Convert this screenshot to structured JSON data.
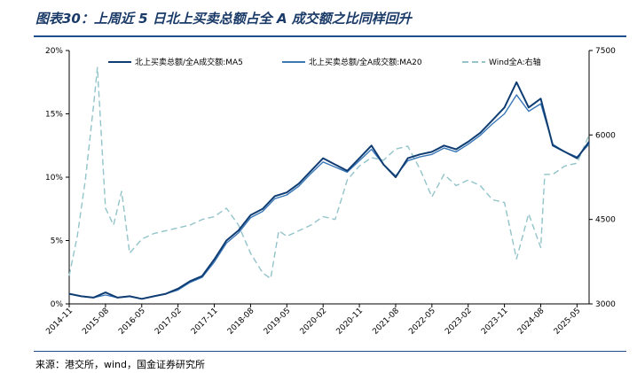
{
  "title": "图表30：上周近 5 日北上买卖总额占全 A 成交额之比同样回升",
  "source": "来源：港交所，wind，国金证券研究所",
  "chart_data": {
    "type": "line",
    "x_ticks": [
      "2014-11",
      "2015-08",
      "2016-05",
      "2017-02",
      "2017-11",
      "2018-08",
      "2019-05",
      "2020-02",
      "2020-11",
      "2021-08",
      "2022-05",
      "2023-02",
      "2023-11",
      "2024-08",
      "2025-05"
    ],
    "x_range": [
      "2014-11",
      "2025-08"
    ],
    "y_left": {
      "ticks": [
        "0%",
        "5%",
        "10%",
        "15%",
        "20%"
      ],
      "range": [
        0,
        20
      ]
    },
    "y_right": {
      "ticks": [
        "3000",
        "4500",
        "6000",
        "7500"
      ],
      "range": [
        3000,
        7500
      ]
    },
    "legend_position": "top",
    "colors": {
      "ma5": "#0f3d73",
      "ma20": "#3a78b8",
      "wind_a": "#92c4ca"
    },
    "series": [
      {
        "name": "北上买卖总额/全A成交额:MA5",
        "axis": "left",
        "style": "solid",
        "x": [
          "2014-11",
          "2015-02",
          "2015-05",
          "2015-08",
          "2015-11",
          "2016-02",
          "2016-05",
          "2016-08",
          "2016-11",
          "2017-02",
          "2017-05",
          "2017-08",
          "2017-11",
          "2018-02",
          "2018-05",
          "2018-08",
          "2018-11",
          "2019-02",
          "2019-05",
          "2019-08",
          "2019-11",
          "2020-02",
          "2020-05",
          "2020-08",
          "2020-11",
          "2021-02",
          "2021-05",
          "2021-08",
          "2021-11",
          "2022-02",
          "2022-05",
          "2022-08",
          "2022-11",
          "2023-02",
          "2023-05",
          "2023-08",
          "2023-11",
          "2024-02",
          "2024-05",
          "2024-08",
          "2024-11",
          "2025-02",
          "2025-05",
          "2025-08"
        ],
        "values": [
          0.8,
          0.6,
          0.5,
          0.9,
          0.5,
          0.6,
          0.4,
          0.6,
          0.8,
          1.2,
          1.8,
          2.2,
          3.5,
          5.0,
          5.8,
          7.0,
          7.5,
          8.5,
          8.8,
          9.5,
          10.5,
          11.5,
          11.0,
          10.5,
          11.5,
          12.5,
          11.0,
          10.0,
          11.5,
          11.8,
          12.0,
          12.5,
          12.2,
          12.8,
          13.5,
          14.5,
          15.5,
          17.5,
          15.5,
          16.2,
          12.5,
          12.0,
          11.5,
          12.8
        ]
      },
      {
        "name": "北上买卖总额/全A成交额:MA20",
        "axis": "left",
        "style": "solid",
        "x": [
          "2014-11",
          "2015-02",
          "2015-05",
          "2015-08",
          "2015-11",
          "2016-02",
          "2016-05",
          "2016-08",
          "2016-11",
          "2017-02",
          "2017-05",
          "2017-08",
          "2017-11",
          "2018-02",
          "2018-05",
          "2018-08",
          "2018-11",
          "2019-02",
          "2019-05",
          "2019-08",
          "2019-11",
          "2020-02",
          "2020-05",
          "2020-08",
          "2020-11",
          "2021-02",
          "2021-05",
          "2021-08",
          "2021-11",
          "2022-02",
          "2022-05",
          "2022-08",
          "2022-11",
          "2023-02",
          "2023-05",
          "2023-08",
          "2023-11",
          "2024-02",
          "2024-05",
          "2024-08",
          "2024-11",
          "2025-02",
          "2025-05",
          "2025-08"
        ],
        "values": [
          0.8,
          0.6,
          0.5,
          0.7,
          0.5,
          0.6,
          0.4,
          0.6,
          0.8,
          1.1,
          1.7,
          2.1,
          3.3,
          4.8,
          5.6,
          6.8,
          7.3,
          8.3,
          8.6,
          9.3,
          10.3,
          11.2,
          10.8,
          10.4,
          11.3,
          12.2,
          11.0,
          10.1,
          11.3,
          11.6,
          11.8,
          12.3,
          12.0,
          12.6,
          13.3,
          14.2,
          15.0,
          16.5,
          15.2,
          15.8,
          12.6,
          12.0,
          11.6,
          12.6
        ]
      },
      {
        "name": "Wind全A:右轴",
        "axis": "right",
        "style": "dashed",
        "x": [
          "2014-11",
          "2015-01",
          "2015-03",
          "2015-05",
          "2015-06",
          "2015-08",
          "2015-10",
          "2015-12",
          "2016-02",
          "2016-05",
          "2016-08",
          "2016-11",
          "2017-02",
          "2017-05",
          "2017-08",
          "2017-11",
          "2018-02",
          "2018-05",
          "2018-08",
          "2018-11",
          "2019-01",
          "2019-03",
          "2019-05",
          "2019-08",
          "2019-11",
          "2020-02",
          "2020-05",
          "2020-08",
          "2020-11",
          "2021-02",
          "2021-05",
          "2021-08",
          "2021-11",
          "2022-02",
          "2022-05",
          "2022-08",
          "2022-11",
          "2023-02",
          "2023-05",
          "2023-08",
          "2023-11",
          "2024-02",
          "2024-05",
          "2024-08",
          "2024-09",
          "2024-11",
          "2025-02",
          "2025-05",
          "2025-08"
        ],
        "values": [
          3500,
          4200,
          5200,
          6500,
          7200,
          4700,
          4400,
          5000,
          3900,
          4150,
          4250,
          4300,
          4350,
          4400,
          4500,
          4550,
          4700,
          4400,
          3900,
          3550,
          3450,
          4300,
          4200,
          4300,
          4400,
          4550,
          4500,
          5200,
          5450,
          5600,
          5550,
          5750,
          5800,
          5400,
          4900,
          5300,
          5100,
          5200,
          5100,
          4850,
          4800,
          3800,
          4600,
          4000,
          5300,
          5300,
          5450,
          5500,
          6000
        ]
      }
    ]
  }
}
